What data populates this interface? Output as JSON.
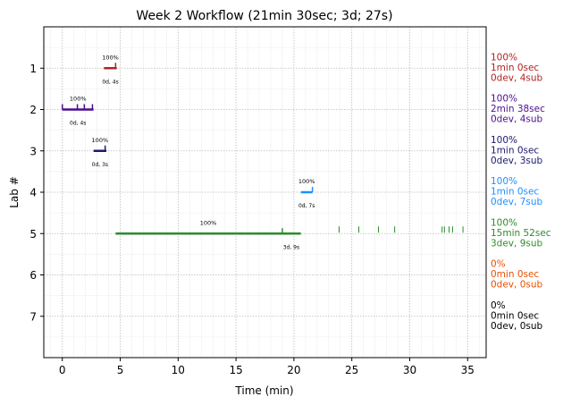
{
  "chart_data": {
    "type": "line",
    "title": "Week 2 Workflow (21min 30sec; 3d; 27s)",
    "xlabel": "Time (min)",
    "ylabel": "Lab #",
    "xlim": [
      -1.6,
      36.6
    ],
    "ylim": [
      8,
      0
    ],
    "xticks": [
      0,
      5,
      10,
      15,
      20,
      25,
      30,
      35
    ],
    "yticks": [
      1,
      2,
      3,
      4,
      5,
      6,
      7
    ],
    "grid": true,
    "labs": [
      {
        "lab": 1,
        "color": "#b22222",
        "segments": [
          [
            3.6,
            4.7
          ]
        ],
        "ticks": [
          4.6
        ],
        "marks": [],
        "pct": "100%",
        "dur": "0d, 4s",
        "summary": [
          "100%",
          "1min 0sec",
          "0dev, 4sub"
        ]
      },
      {
        "lab": 2,
        "color": "#4b0e8f",
        "segments": [
          [
            0.0,
            2.7
          ]
        ],
        "ticks": [
          0.0,
          1.3,
          1.9,
          2.6
        ],
        "marks": [],
        "pct": "100%",
        "dur": "0d, 4s",
        "summary": [
          "100%",
          "2min 38sec",
          "0dev, 4sub"
        ]
      },
      {
        "lab": 3,
        "color": "#1a1a6e",
        "segments": [
          [
            2.7,
            3.8
          ]
        ],
        "ticks": [
          3.7
        ],
        "marks": [],
        "pct": "100%",
        "dur": "0d, 3s",
        "summary": [
          "100%",
          "1min 0sec",
          "0dev, 3sub"
        ]
      },
      {
        "lab": 4,
        "color": "#1e90ff",
        "segments": [
          [
            20.6,
            21.6
          ]
        ],
        "ticks": [
          21.6
        ],
        "marks": [],
        "pct": "100%",
        "dur": "0d, 7s",
        "summary": [
          "100%",
          "1min 0sec",
          "0dev, 7sub"
        ]
      },
      {
        "lab": 5,
        "color": "#2e8b2e",
        "segments": [
          [
            4.6,
            20.6
          ]
        ],
        "ticks": [
          19.0
        ],
        "marks": [
          23.9,
          25.6,
          27.3,
          28.7,
          32.8,
          33.0,
          33.4,
          33.7,
          34.6
        ],
        "pct": "100%",
        "dur": "3d, 9s",
        "summary": [
          "100%",
          "15min 52sec",
          "3dev, 9sub"
        ]
      },
      {
        "lab": 6,
        "color": "#e65100",
        "segments": [],
        "ticks": [],
        "marks": [],
        "pct": "",
        "dur": "",
        "summary": [
          "0%",
          "0min 0sec",
          "0dev, 0sub"
        ]
      },
      {
        "lab": 7,
        "color": "#000000",
        "segments": [],
        "ticks": [],
        "marks": [],
        "pct": "",
        "dur": "",
        "summary": [
          "0%",
          "0min 0sec",
          "0dev, 0sub"
        ]
      }
    ]
  }
}
